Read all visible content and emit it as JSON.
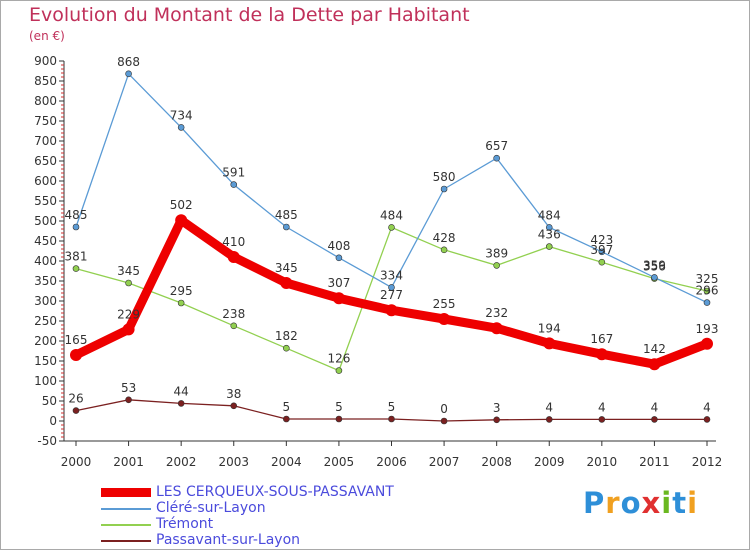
{
  "header": {
    "title": "Evolution du Montant de la Dette par Habitant",
    "subtitle": "(en €)"
  },
  "logo": {
    "text": "Proxiti",
    "letters": [
      "P",
      "r",
      "o",
      "x",
      "i",
      "t",
      "i"
    ],
    "colors": [
      "#2e8fd8",
      "#f0a020",
      "#2e8fd8",
      "#e03030",
      "#6ab820",
      "#2e8fd8",
      "#f0a020"
    ]
  },
  "chart_data": {
    "type": "line",
    "title": "Evolution du Montant de la Dette par Habitant",
    "subtitle": "(en €)",
    "xlabel": "",
    "ylabel": "",
    "x": [
      "2000",
      "2001",
      "2002",
      "2003",
      "2004",
      "2005",
      "2006",
      "2007",
      "2008",
      "2009",
      "2010",
      "2011",
      "2012"
    ],
    "ylim": [
      -50,
      900
    ],
    "yticks": [
      -50,
      0,
      50,
      100,
      150,
      200,
      250,
      300,
      350,
      400,
      450,
      500,
      550,
      600,
      650,
      700,
      750,
      800,
      850,
      900
    ],
    "grid": false,
    "legend_position": "bottom-left",
    "series": [
      {
        "name": "LES CERQUEUX-SOUS-PASSAVANT",
        "color": "#ee0000",
        "values": [
          165,
          229,
          502,
          410,
          345,
          307,
          277,
          255,
          232,
          194,
          167,
          142,
          193
        ],
        "labels": [
          "165",
          "229",
          "502",
          "410",
          "345",
          "307",
          "277",
          "255",
          "232",
          "194",
          "167",
          "142",
          "193"
        ]
      },
      {
        "name": "Cléré-sur-Layon",
        "color": "#5b9bd5",
        "values": [
          485,
          868,
          734,
          591,
          485,
          408,
          334,
          580,
          657,
          484,
          423,
          359,
          296
        ],
        "labels": [
          "485",
          "868",
          "734",
          "591",
          "485",
          "408",
          "334",
          "580",
          "657",
          "484",
          "423",
          "359",
          "296"
        ]
      },
      {
        "name": "Trémont",
        "color": "#92d050",
        "values": [
          381,
          345,
          295,
          238,
          182,
          126,
          484,
          428,
          389,
          436,
          397,
          356,
          325
        ],
        "labels": [
          "381",
          "345",
          "295",
          "238",
          "182",
          "126",
          "484",
          "428",
          "389",
          "436",
          "397",
          "356",
          "325"
        ]
      },
      {
        "name": "Passavant-sur-Layon",
        "color": "#7b2020",
        "values": [
          26,
          53,
          44,
          38,
          5,
          5,
          5,
          0,
          3,
          4,
          4,
          4,
          4
        ],
        "labels": [
          "26",
          "53",
          "44",
          "38",
          "5",
          "5",
          "5",
          "0",
          "3",
          "4",
          "4",
          "4",
          "4"
        ]
      }
    ]
  }
}
